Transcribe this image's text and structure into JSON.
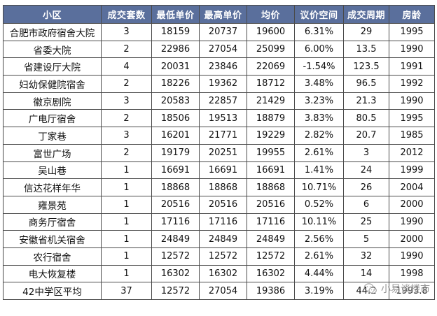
{
  "table": {
    "headers": [
      "小区",
      "成交套数",
      "最低单价",
      "最高单价",
      "均价",
      "议价空间",
      "成交周期",
      "房龄"
    ],
    "rows": [
      [
        "合肥市政府宿舍大院",
        "3",
        "18159",
        "20737",
        "19600",
        "6.31%",
        "29",
        "1995"
      ],
      [
        "省委大院",
        "2",
        "22986",
        "27054",
        "25099",
        "6.00%",
        "13.5",
        "1990"
      ],
      [
        "省建设厅大院",
        "4",
        "20031",
        "23846",
        "22069",
        "-1.54%",
        "123.5",
        "1991"
      ],
      [
        "妇幼保健院宿舍",
        "2",
        "18226",
        "19362",
        "18712",
        "3.48%",
        "96.5",
        "1992"
      ],
      [
        "徽京剧院",
        "3",
        "20583",
        "22857",
        "21429",
        "3.23%",
        "21.3",
        "1990"
      ],
      [
        "广电厅宿舍",
        "2",
        "18506",
        "19513",
        "18879",
        "3.83%",
        "80.5",
        "1995"
      ],
      [
        "丁家巷",
        "3",
        "16201",
        "21771",
        "19229",
        "2.82%",
        "20.7",
        "1985"
      ],
      [
        "富世广场",
        "2",
        "19179",
        "20251",
        "19955",
        "2.61%",
        "3",
        "2012"
      ],
      [
        "吴山巷",
        "1",
        "16691",
        "16691",
        "16691",
        "1.41%",
        "24",
        "1999"
      ],
      [
        "信达花样年华",
        "1",
        "18868",
        "18868",
        "18868",
        "10.71%",
        "26",
        "2004"
      ],
      [
        "雍景苑",
        "1",
        "20516",
        "20516",
        "20516",
        "0.52%",
        "6",
        "2000"
      ],
      [
        "商务厅宿舍",
        "1",
        "17116",
        "17116",
        "17116",
        "10.11%",
        "25",
        "1990"
      ],
      [
        "安徽省机关宿舍",
        "1",
        "24849",
        "24849",
        "24849",
        "2.56%",
        "5",
        "2000"
      ],
      [
        "农行宿舍",
        "1",
        "12572",
        "12572",
        "12572",
        "2.61%",
        "32",
        "1990"
      ],
      [
        "电大恢复楼",
        "1",
        "16302",
        "16302",
        "16302",
        "4.44%",
        "14",
        "1998"
      ],
      [
        "42中学区平均",
        "37",
        "12572",
        "27054",
        "19386",
        "3.19%",
        "44.2",
        "1993.8"
      ]
    ]
  },
  "watermark": {
    "text": "小易谈楼市",
    "icon": "wechat-icon"
  },
  "colors": {
    "header_bg": "#5a6f9c",
    "header_text": "#ffffff",
    "border": "#4a4a4a"
  }
}
